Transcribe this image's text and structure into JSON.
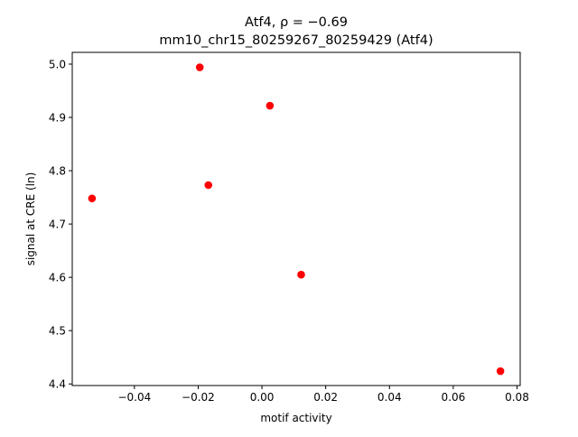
{
  "chart_data": {
    "type": "scatter",
    "title_line1": "Atf4, ρ = −0.69",
    "title_line2": "mm10_chr15_80259267_80259429 (Atf4)",
    "xlabel": "motif activity",
    "ylabel": "signal at CRE (ln)",
    "xlim": [
      -0.0595,
      0.081
    ],
    "ylim": [
      4.397,
      5.022
    ],
    "xticks": [
      {
        "value": -0.04,
        "label": "−0.04"
      },
      {
        "value": -0.02,
        "label": "−0.02"
      },
      {
        "value": 0.0,
        "label": "0.00"
      },
      {
        "value": 0.02,
        "label": "0.02"
      },
      {
        "value": 0.04,
        "label": "0.04"
      },
      {
        "value": 0.06,
        "label": "0.06"
      },
      {
        "value": 0.08,
        "label": "0.08"
      }
    ],
    "yticks": [
      {
        "value": 4.4,
        "label": "4.4"
      },
      {
        "value": 4.5,
        "label": "4.5"
      },
      {
        "value": 4.6,
        "label": "4.6"
      },
      {
        "value": 4.7,
        "label": "4.7"
      },
      {
        "value": 4.8,
        "label": "4.8"
      },
      {
        "value": 4.9,
        "label": "4.9"
      },
      {
        "value": 5.0,
        "label": "5.0"
      }
    ],
    "series": [
      {
        "color": "#ff0000",
        "points": [
          {
            "x": -0.0533,
            "y": 4.748
          },
          {
            "x": -0.0195,
            "y": 4.994
          },
          {
            "x": -0.0168,
            "y": 4.773
          },
          {
            "x": 0.0025,
            "y": 4.922
          },
          {
            "x": 0.0123,
            "y": 4.605
          },
          {
            "x": 0.0748,
            "y": 4.424
          }
        ]
      }
    ],
    "grid": false,
    "legend": "none"
  }
}
